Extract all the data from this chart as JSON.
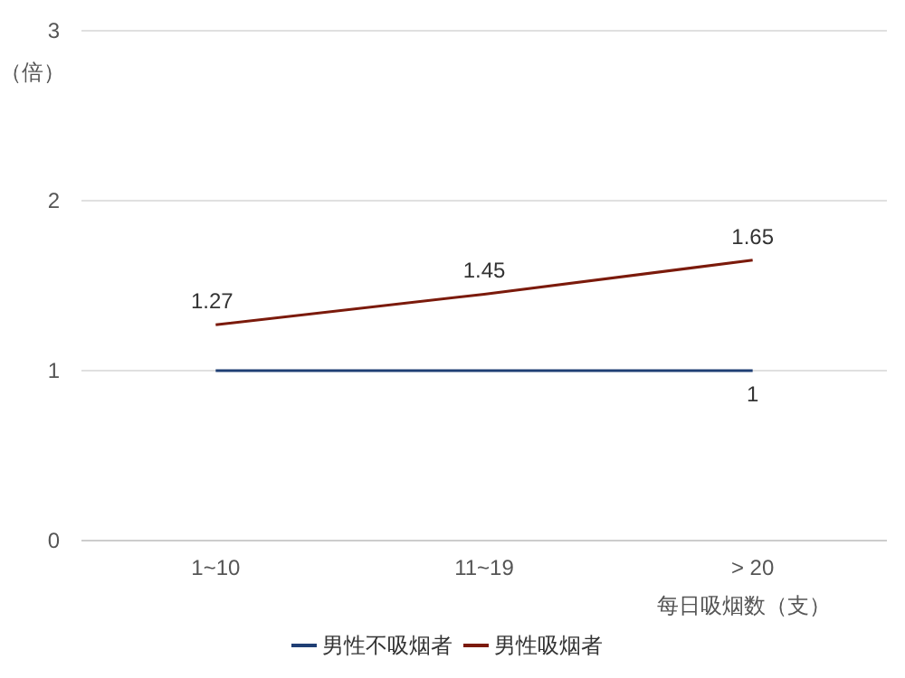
{
  "chart_data": {
    "type": "line",
    "ylabel": "（倍）",
    "xlabel": "每日吸烟数（支）",
    "categories": [
      "1~10",
      "11~19",
      "> 20"
    ],
    "series": [
      {
        "name": "男性不吸烟者",
        "color": "#1f3f74",
        "values": [
          1,
          1,
          1
        ],
        "value_labels": [
          null,
          null,
          "1"
        ]
      },
      {
        "name": "男性吸烟者",
        "color": "#7b1a0b",
        "values": [
          1.27,
          1.45,
          1.65
        ],
        "value_labels": [
          "1.27",
          "1.45",
          "1.65"
        ]
      }
    ],
    "ylim": [
      0,
      3
    ],
    "yticks": [
      0,
      1,
      2,
      3
    ],
    "grid": "y",
    "legend": "bottom",
    "marker": "none",
    "line_style": "solid"
  }
}
